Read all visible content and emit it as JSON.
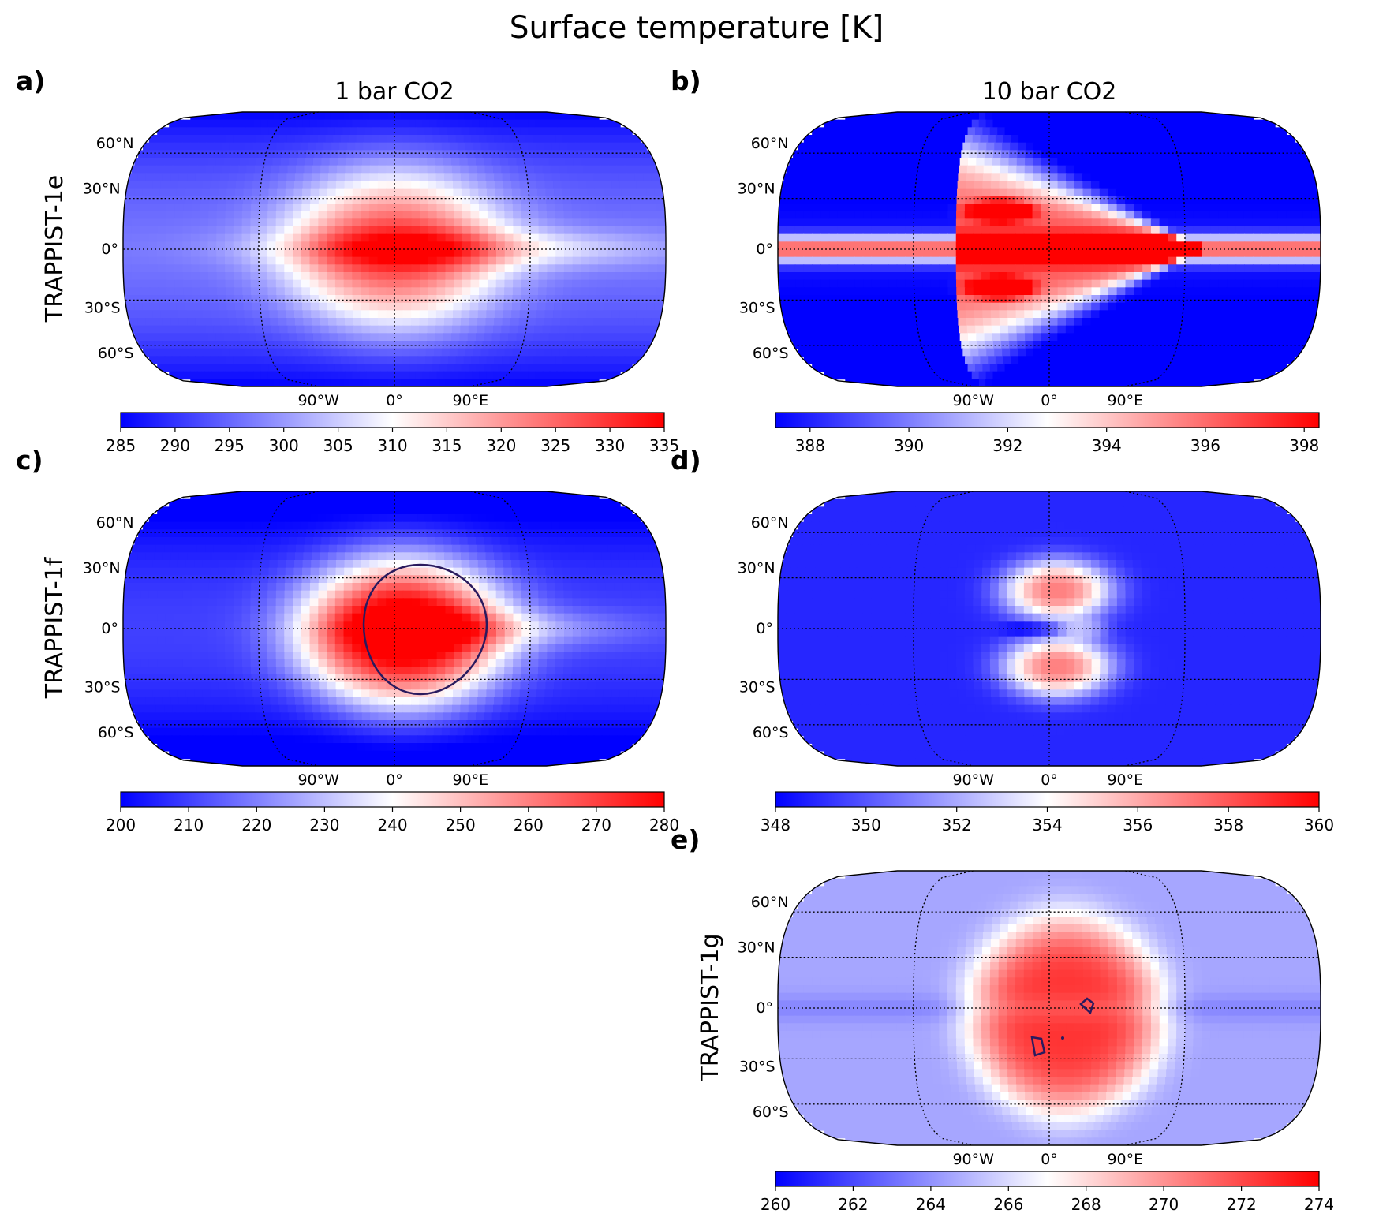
{
  "figure": {
    "title": "Surface temperature [K]",
    "column_titles": [
      "1 bar CO2",
      "10 bar CO2"
    ],
    "row_labels": [
      "TRAPPIST-1e",
      "TRAPPIST-1f",
      "TRAPPIST-1g"
    ]
  },
  "colormap": {
    "low": "#0000ff",
    "mid": "#ffffff",
    "high": "#ff0000",
    "contour": "#2a1a5e"
  },
  "chart_data": [
    {
      "type": "heatmap",
      "panel": "a)",
      "planet": "TRAPPIST-1e",
      "pressure": "1 bar CO2",
      "projection": "Robinson",
      "pattern": "dayside-blob",
      "colorbar_range": [
        285,
        335
      ],
      "colorbar_ticks": [
        "285",
        "290",
        "295",
        "300",
        "305",
        "310",
        "315",
        "320",
        "325",
        "330",
        "335"
      ],
      "lat_labels": [
        "60°N",
        "30°N",
        "0°",
        "30°S",
        "60°S"
      ],
      "lon_labels": [
        "90°W",
        "0°",
        "90°E"
      ],
      "contour": "none"
    },
    {
      "type": "heatmap",
      "panel": "b)",
      "planet": "TRAPPIST-1e",
      "pressure": "10 bar CO2",
      "projection": "Robinson",
      "pattern": "arrow-jet",
      "colorbar_range": [
        387.3,
        398.3
      ],
      "colorbar_ticks": [
        "388",
        "390",
        "392",
        "394",
        "396",
        "398"
      ],
      "lat_labels": [
        "60°N",
        "30°N",
        "0°",
        "30°S",
        "60°S"
      ],
      "lon_labels": [
        "90°W",
        "0°",
        "90°E"
      ],
      "contour": "none"
    },
    {
      "type": "heatmap",
      "panel": "c)",
      "planet": "TRAPPIST-1f",
      "pressure": "1 bar CO2",
      "projection": "Robinson",
      "pattern": "dayside-blob-contour",
      "colorbar_range": [
        200,
        280
      ],
      "colorbar_ticks": [
        "200",
        "210",
        "220",
        "230",
        "240",
        "250",
        "260",
        "270",
        "280"
      ],
      "lat_labels": [
        "60°N",
        "30°N",
        "0°",
        "30°S",
        "60°S"
      ],
      "lon_labels": [
        "90°W",
        "0°",
        "90°E"
      ],
      "contour": "one closed contour around the substellar region"
    },
    {
      "type": "heatmap",
      "panel": "d)",
      "planet": "TRAPPIST-1f",
      "pressure": "10 bar CO2",
      "projection": "Robinson",
      "pattern": "double-lobe",
      "colorbar_range": [
        348,
        360
      ],
      "colorbar_ticks": [
        "348",
        "350",
        "352",
        "354",
        "356",
        "358",
        "360"
      ],
      "lat_labels": [
        "60°N",
        "30°N",
        "0°",
        "30°S",
        "60°S"
      ],
      "lon_labels": [
        "90°W",
        "0°",
        "90°E"
      ],
      "contour": "none"
    },
    {
      "type": "heatmap",
      "panel": "e)",
      "planet": "TRAPPIST-1g",
      "pressure": "10 bar CO2",
      "projection": "Robinson",
      "pattern": "broad-dayside",
      "colorbar_range": [
        260,
        274
      ],
      "colorbar_ticks": [
        "260",
        "262",
        "264",
        "266",
        "268",
        "270",
        "272",
        "274"
      ],
      "lat_labels": [
        "60°N",
        "30°N",
        "0°",
        "30°S",
        "60°S"
      ],
      "lon_labels": [
        "90°W",
        "0°",
        "90°E"
      ],
      "contour": "small closed contours near the substellar region"
    }
  ]
}
